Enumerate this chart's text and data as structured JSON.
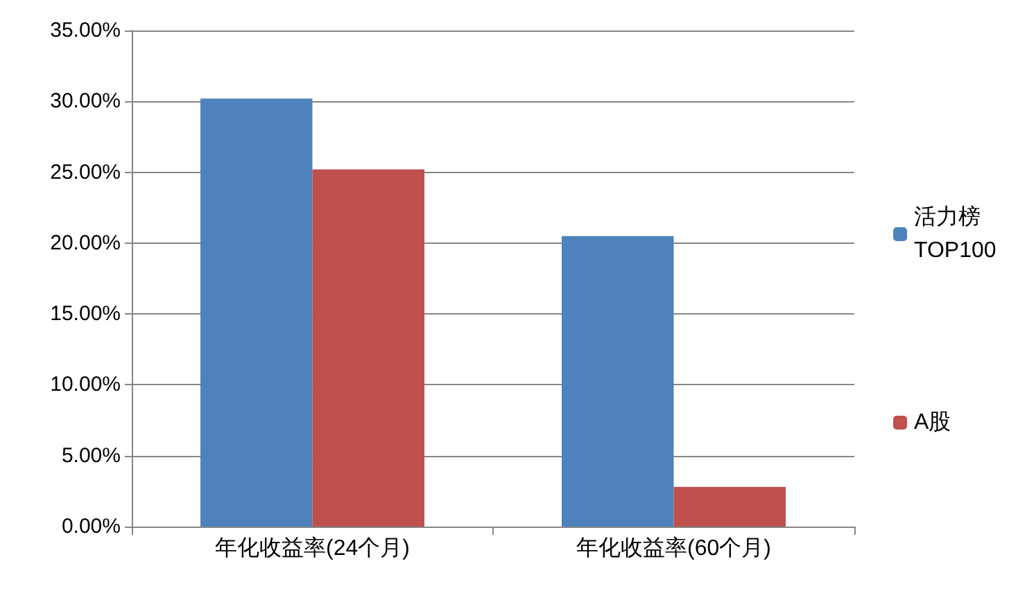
{
  "chart_data": {
    "type": "bar",
    "categories": [
      "年化收益率(24个月)",
      "年化收益率(60个月)"
    ],
    "series": [
      {
        "name": "活力榜TOP100",
        "color": "#4f81bd",
        "values": [
          30.2,
          20.5
        ]
      },
      {
        "name": "A股",
        "color": "#c0504d",
        "values": [
          25.2,
          2.8
        ]
      }
    ],
    "ylim": [
      0,
      35
    ],
    "yticks": [
      {
        "value": 0,
        "label": "0.00%"
      },
      {
        "value": 5,
        "label": "5.00%"
      },
      {
        "value": 10,
        "label": "10.00%"
      },
      {
        "value": 15,
        "label": "15.00%"
      },
      {
        "value": 20,
        "label": "20.00%"
      },
      {
        "value": 25,
        "label": "25.00%"
      },
      {
        "value": 30,
        "label": "30.00%"
      },
      {
        "value": 35,
        "label": "35.00%"
      }
    ],
    "grid": "y",
    "legend": "right"
  }
}
